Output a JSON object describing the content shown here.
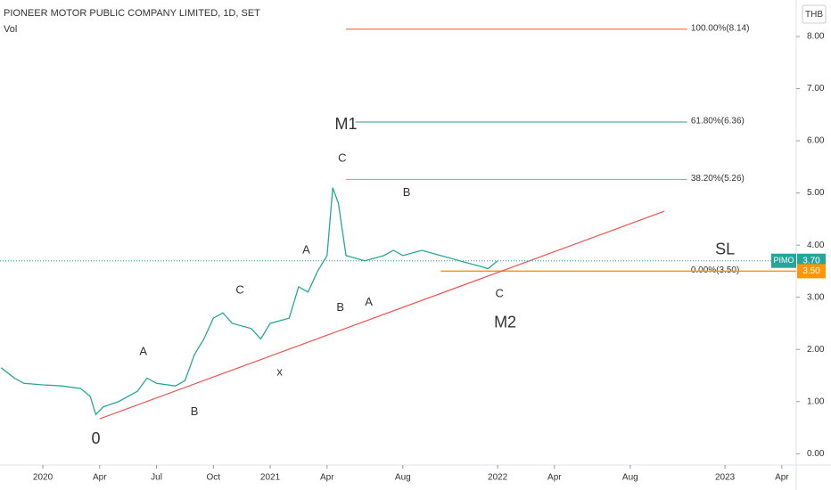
{
  "header": {
    "title": "PIONEER MOTOR PUBLIC COMPANY LIMITED, 1D, SET",
    "indicator": "Vol",
    "currency": "THB"
  },
  "chart_data": {
    "type": "line",
    "series": [
      {
        "name": "PIMO",
        "color": "#26a69a",
        "x": [
          -2.2,
          -1.5,
          -1,
          0,
          1,
          2,
          2.5,
          2.8,
          3.2,
          4,
          5,
          5.5,
          6,
          7,
          7.5,
          8,
          8.5,
          9,
          9.5,
          10,
          11,
          11.5,
          12,
          13,
          13.5,
          14,
          14.5,
          15,
          15.3,
          15.6,
          16,
          17,
          18,
          18.5,
          19,
          20,
          21,
          22,
          23,
          23.5,
          24
        ],
        "values": [
          1.65,
          1.45,
          1.35,
          1.32,
          1.3,
          1.25,
          1.1,
          0.75,
          0.9,
          1.0,
          1.2,
          1.45,
          1.35,
          1.3,
          1.4,
          1.9,
          2.2,
          2.6,
          2.7,
          2.5,
          2.4,
          2.2,
          2.5,
          2.6,
          3.2,
          3.1,
          3.5,
          3.8,
          5.1,
          4.8,
          3.8,
          3.7,
          3.8,
          3.9,
          3.8,
          3.9,
          3.8,
          3.7,
          3.6,
          3.55,
          3.7
        ]
      }
    ],
    "last_price": {
      "symbol": "PIMO",
      "value": 3.7,
      "label": "3.70",
      "color": "#26a69a"
    },
    "stop_level": {
      "value": 3.5,
      "label": "3.50",
      "color": "#ff9800"
    },
    "fib_levels": [
      {
        "label": "100.00%(8.14)",
        "value": 8.14,
        "color": "#f4511e"
      },
      {
        "label": "61.80%(6.36)",
        "value": 6.36,
        "color": "#2e9e8f"
      },
      {
        "label": "38.20%(5.26)",
        "value": 5.26,
        "color": "#66bb9a"
      },
      {
        "label": "0.00%(3.50)",
        "value": 3.5,
        "color": "#b0b0b0"
      }
    ],
    "trend_line": {
      "x": [
        3.0,
        32.8
      ],
      "values": [
        0.67,
        4.65
      ],
      "color": "#ef5350"
    },
    "annotations": [
      {
        "text": "0",
        "color": "#880e4f"
      },
      {
        "text": "A",
        "color": "#283593"
      },
      {
        "text": "B",
        "color": "#283593"
      },
      {
        "text": "C",
        "color": "#283593"
      },
      {
        "text": "x",
        "color": "#283593"
      },
      {
        "text": "A",
        "color": "#283593"
      },
      {
        "text": "B",
        "color": "#283593"
      },
      {
        "text": "C",
        "color": "#283593"
      },
      {
        "text": "M1",
        "color": "#880e4f"
      },
      {
        "text": "B",
        "color": "#f59d00"
      },
      {
        "text": "A",
        "color": "#f59d00"
      },
      {
        "text": "C",
        "color": "#f59d00"
      },
      {
        "text": "M2",
        "color": "#880e4f"
      },
      {
        "text": "SL",
        "color": "#ff9800"
      }
    ],
    "xlim": [
      -2.26,
      39.76
    ],
    "ylim": [
      -0.2,
      8.7
    ],
    "xticks": [
      {
        "value": 0,
        "label": "2020"
      },
      {
        "value": 3,
        "label": "Apr"
      },
      {
        "value": 6,
        "label": "Jul"
      },
      {
        "value": 9,
        "label": "Oct"
      },
      {
        "value": 12,
        "label": "2021"
      },
      {
        "value": 15,
        "label": "Apr"
      },
      {
        "value": 19,
        "label": "Aug"
      },
      {
        "value": 24,
        "label": "2022"
      },
      {
        "value": 27,
        "label": "Apr"
      },
      {
        "value": 31,
        "label": "Aug"
      },
      {
        "value": 36,
        "label": "2023"
      },
      {
        "value": 39,
        "label": "Apr"
      }
    ],
    "yticks": [
      {
        "value": 0,
        "label": "0.00"
      },
      {
        "value": 1,
        "label": "1.00"
      },
      {
        "value": 2,
        "label": "2.00"
      },
      {
        "value": 3,
        "label": "3.00"
      },
      {
        "value": 4,
        "label": "4.00"
      },
      {
        "value": 5,
        "label": "5.00"
      },
      {
        "value": 6,
        "label": "6.00"
      },
      {
        "value": 7,
        "label": "7.00"
      },
      {
        "value": 8,
        "label": "8.00"
      }
    ]
  }
}
